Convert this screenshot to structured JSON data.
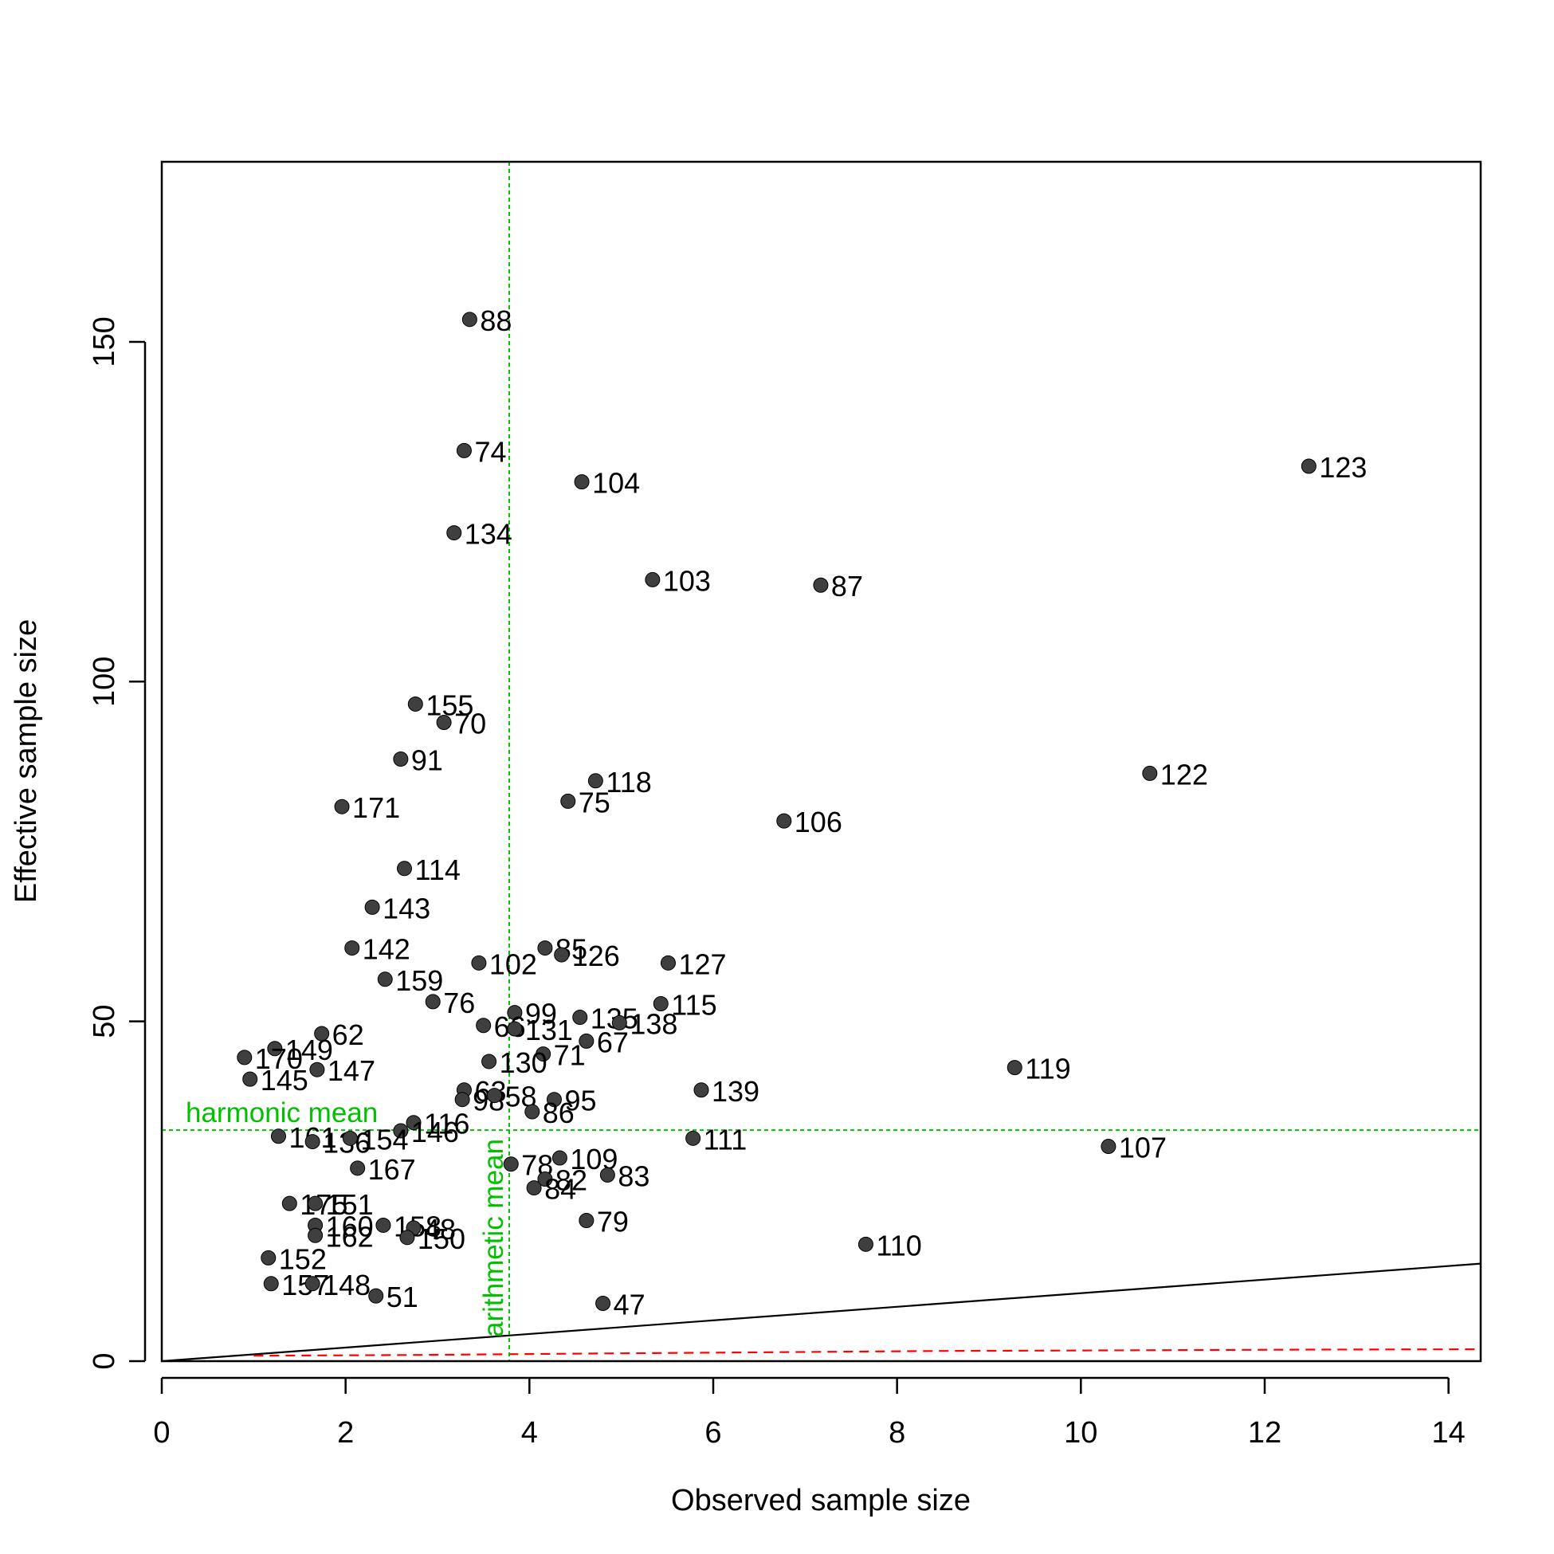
{
  "chart_data": {
    "type": "scatter",
    "title": "",
    "xlabel": "Observed sample size",
    "ylabel": "Effective sample size",
    "xlim": [
      0,
      14.35
    ],
    "ylim": [
      0,
      176.5
    ],
    "x_ticks": [
      0,
      2,
      4,
      6,
      8,
      10,
      12,
      14
    ],
    "y_ticks": [
      0,
      50,
      100,
      150
    ],
    "grid": false,
    "legend": "none",
    "point_color": "#3f3f3f",
    "reference_lines": {
      "harmonic_mean": {
        "label": "harmonic mean",
        "y": 34,
        "color": "#00c000"
      },
      "arithmetic_mean": {
        "label": "arithmetic mean",
        "x": 3.78,
        "color": "#00c000"
      },
      "identity_line": {
        "slope": 1,
        "color": "#000000"
      },
      "lower_curve": {
        "color": "#ff0000",
        "points": [
          [
            1,
            0.8
          ],
          [
            2.7,
            0.9
          ],
          [
            4.5,
            1.1
          ],
          [
            6.5,
            1.3
          ],
          [
            8.5,
            1.5
          ],
          [
            10.5,
            1.6
          ],
          [
            12.5,
            1.7
          ],
          [
            14.35,
            1.75
          ]
        ]
      }
    },
    "points": [
      {
        "x": 3.35,
        "y": 153.3,
        "label": "88"
      },
      {
        "x": 3.29,
        "y": 134.0,
        "label": "74"
      },
      {
        "x": 4.57,
        "y": 129.4,
        "label": "104"
      },
      {
        "x": 12.48,
        "y": 131.7,
        "label": "123"
      },
      {
        "x": 3.18,
        "y": 121.9,
        "label": "134"
      },
      {
        "x": 5.34,
        "y": 115.0,
        "label": "103"
      },
      {
        "x": 7.17,
        "y": 114.2,
        "label": "87"
      },
      {
        "x": 2.76,
        "y": 96.7,
        "label": "155"
      },
      {
        "x": 3.07,
        "y": 94.0,
        "label": "70"
      },
      {
        "x": 2.6,
        "y": 88.6,
        "label": "91"
      },
      {
        "x": 4.72,
        "y": 85.4,
        "label": "118"
      },
      {
        "x": 10.75,
        "y": 86.5,
        "label": "122"
      },
      {
        "x": 4.42,
        "y": 82.4,
        "label": "75"
      },
      {
        "x": 1.96,
        "y": 81.6,
        "label": "171"
      },
      {
        "x": 6.77,
        "y": 79.5,
        "label": "106"
      },
      {
        "x": 2.64,
        "y": 72.5,
        "label": "114"
      },
      {
        "x": 2.29,
        "y": 66.8,
        "label": "143"
      },
      {
        "x": 2.07,
        "y": 60.8,
        "label": "142"
      },
      {
        "x": 4.17,
        "y": 60.8,
        "label": "85"
      },
      {
        "x": 4.35,
        "y": 59.8,
        "label": "126"
      },
      {
        "x": 3.45,
        "y": 58.6,
        "label": "102"
      },
      {
        "x": 5.51,
        "y": 58.6,
        "label": "127"
      },
      {
        "x": 2.43,
        "y": 56.2,
        "label": "159"
      },
      {
        "x": 2.95,
        "y": 52.9,
        "label": "76"
      },
      {
        "x": 5.43,
        "y": 52.6,
        "label": "115"
      },
      {
        "x": 3.84,
        "y": 51.3,
        "label": "99"
      },
      {
        "x": 4.55,
        "y": 50.6,
        "label": "135"
      },
      {
        "x": 4.98,
        "y": 49.8,
        "label": "138"
      },
      {
        "x": 3.5,
        "y": 49.4,
        "label": "66"
      },
      {
        "x": 3.84,
        "y": 48.9,
        "label": "131"
      },
      {
        "x": 1.74,
        "y": 48.2,
        "label": "62"
      },
      {
        "x": 4.62,
        "y": 47.1,
        "label": "67"
      },
      {
        "x": 1.23,
        "y": 46.0,
        "label": "149"
      },
      {
        "x": 4.15,
        "y": 45.2,
        "label": "71"
      },
      {
        "x": 0.9,
        "y": 44.7,
        "label": "170"
      },
      {
        "x": 3.56,
        "y": 44.1,
        "label": "130"
      },
      {
        "x": 1.69,
        "y": 42.9,
        "label": "147"
      },
      {
        "x": 9.28,
        "y": 43.2,
        "label": "119"
      },
      {
        "x": 0.96,
        "y": 41.5,
        "label": "145"
      },
      {
        "x": 5.87,
        "y": 39.9,
        "label": "139"
      },
      {
        "x": 3.29,
        "y": 39.9,
        "label": "63"
      },
      {
        "x": 3.27,
        "y": 38.5,
        "label": "98"
      },
      {
        "x": 3.62,
        "y": 39.1,
        "label": "58"
      },
      {
        "x": 4.27,
        "y": 38.5,
        "label": "95"
      },
      {
        "x": 4.03,
        "y": 36.7,
        "label": "86"
      },
      {
        "x": 2.74,
        "y": 35.1,
        "label": "116"
      },
      {
        "x": 2.6,
        "y": 33.9,
        "label": "146"
      },
      {
        "x": 1.27,
        "y": 33.1,
        "label": "161"
      },
      {
        "x": 1.64,
        "y": 32.3,
        "label": "136"
      },
      {
        "x": 2.05,
        "y": 32.8,
        "label": "154"
      },
      {
        "x": 5.78,
        "y": 32.8,
        "label": "111"
      },
      {
        "x": 10.3,
        "y": 31.6,
        "label": "107"
      },
      {
        "x": 2.13,
        "y": 28.4,
        "label": "167"
      },
      {
        "x": 4.33,
        "y": 29.9,
        "label": "109"
      },
      {
        "x": 3.8,
        "y": 29.0,
        "label": "78"
      },
      {
        "x": 4.85,
        "y": 27.4,
        "label": "83"
      },
      {
        "x": 4.17,
        "y": 26.8,
        "label": "82"
      },
      {
        "x": 4.05,
        "y": 25.5,
        "label": "84"
      },
      {
        "x": 1.39,
        "y": 23.2,
        "label": "175"
      },
      {
        "x": 1.67,
        "y": 23.2,
        "label": "151"
      },
      {
        "x": 4.62,
        "y": 20.7,
        "label": "79"
      },
      {
        "x": 1.67,
        "y": 20.0,
        "label": "160"
      },
      {
        "x": 2.41,
        "y": 20.0,
        "label": "158"
      },
      {
        "x": 2.74,
        "y": 19.6,
        "label": "48"
      },
      {
        "x": 1.67,
        "y": 18.5,
        "label": "162"
      },
      {
        "x": 2.67,
        "y": 18.2,
        "label": "150"
      },
      {
        "x": 7.66,
        "y": 17.2,
        "label": "110"
      },
      {
        "x": 1.16,
        "y": 15.2,
        "label": "152"
      },
      {
        "x": 1.19,
        "y": 11.4,
        "label": "157"
      },
      {
        "x": 1.64,
        "y": 11.4,
        "label": "148"
      },
      {
        "x": 2.33,
        "y": 9.6,
        "label": "51"
      },
      {
        "x": 4.8,
        "y": 8.5,
        "label": "47"
      }
    ]
  }
}
